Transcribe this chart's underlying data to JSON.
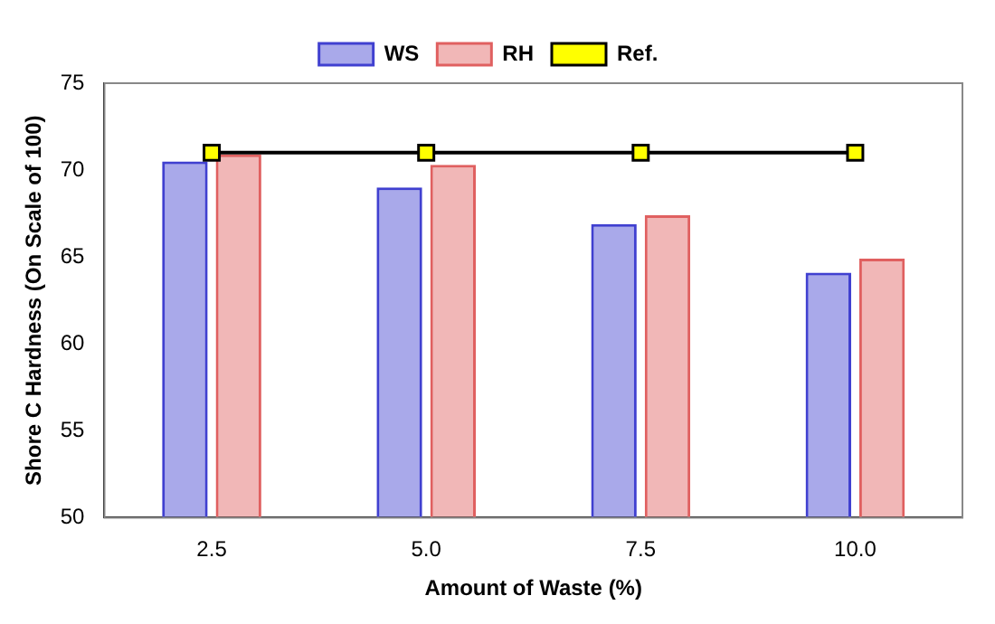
{
  "chart_data": {
    "type": "bar",
    "xlabel": "Amount of Waste (%)",
    "ylabel": "Shore C Hardness (On Scale of 100)",
    "categories": [
      "2.5",
      "5.0",
      "7.5",
      "10.0"
    ],
    "series": [
      {
        "name": "WS",
        "color": "#4040d0",
        "values": [
          70.5,
          69.0,
          66.9,
          64.1
        ]
      },
      {
        "name": "RH",
        "color": "#e06060",
        "values": [
          70.9,
          70.3,
          67.4,
          64.9
        ]
      },
      {
        "name": "Ref.",
        "type": "line",
        "color": "#000000",
        "marker": "square",
        "values": [
          71.0,
          71.0,
          71.0,
          71.0
        ]
      }
    ],
    "ylim": [
      50,
      75
    ],
    "yticks": [
      50,
      55,
      60,
      65,
      70,
      75
    ],
    "grid": false,
    "legend": "top"
  }
}
